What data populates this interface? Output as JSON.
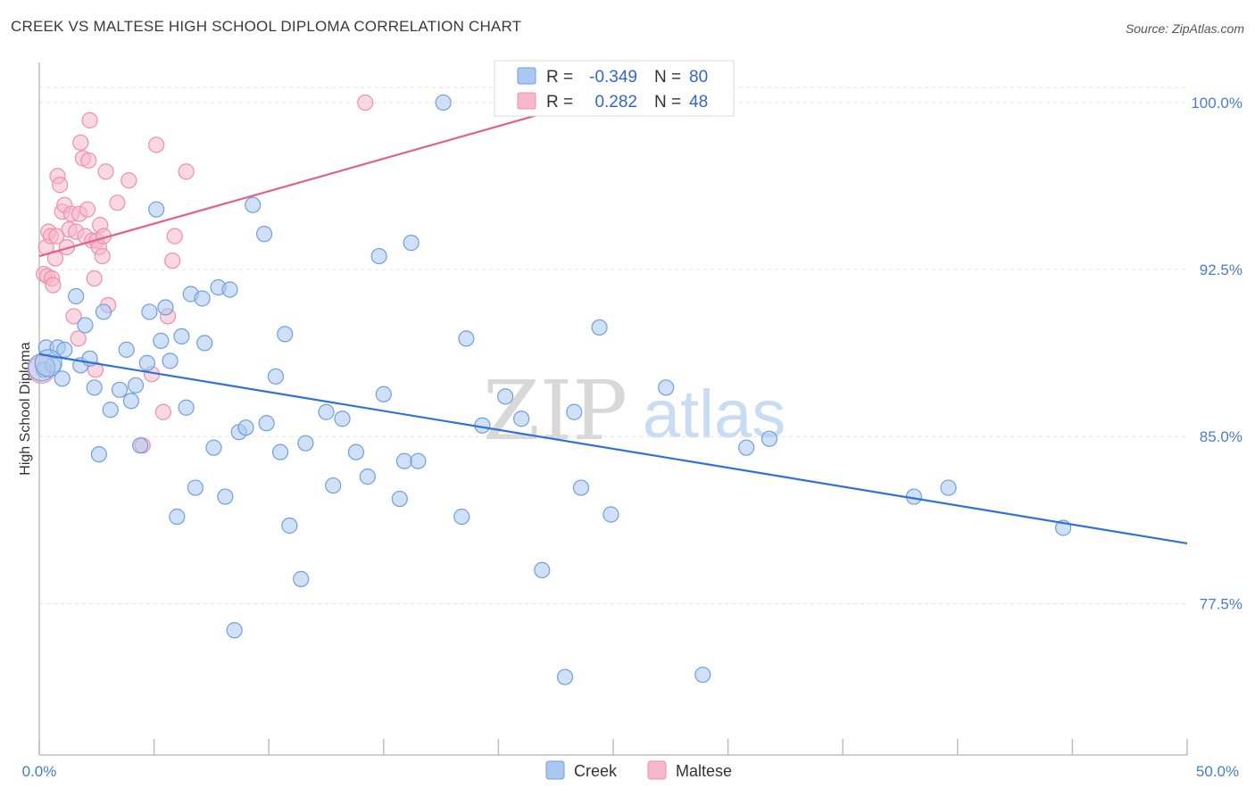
{
  "title": "CREEK VS MALTESE HIGH SCHOOL DIPLOMA CORRELATION CHART",
  "source": "Source: ZipAtlas.com",
  "watermark": {
    "zip": "ZIP",
    "atlas": "atlas"
  },
  "colors": {
    "creek_fill": "#aac8f0",
    "creek_stroke": "#6f9fdf",
    "creek_line": "#2f72d6",
    "maltese_fill": "#f6b8cb",
    "maltese_stroke": "#ee8fae",
    "maltese_line": "#e4608a",
    "tick_text": "#4a7cc9",
    "grid": "#e3e3e3"
  },
  "legend": {
    "rows": [
      {
        "r_label": "R =",
        "r_value": "-0.349",
        "n_label": "N =",
        "n_value": "80"
      },
      {
        "r_label": "R =",
        "r_value": "0.282",
        "n_label": "N =",
        "n_value": "48"
      }
    ]
  },
  "chart_data": {
    "type": "scatter",
    "title": "CREEK VS MALTESE HIGH SCHOOL DIPLOMA CORRELATION CHART",
    "xlabel": "",
    "ylabel": "High School Diploma",
    "xlim": [
      0,
      50
    ],
    "ylim": [
      70.7,
      101.8
    ],
    "x_tick_labels": [
      "0.0%",
      "50.0%"
    ],
    "y_ticks": [
      77.5,
      85.0,
      92.5,
      100.0
    ],
    "y_tick_labels": [
      "77.5%",
      "85.0%",
      "92.5%",
      "100.0%"
    ],
    "grid": true,
    "series": [
      {
        "name": "Creek",
        "r": -0.349,
        "n": 80,
        "trend": {
          "x": [
            0,
            50
          ],
          "y": [
            88.7,
            80.2
          ]
        },
        "points": [
          [
            0.2,
            88.0
          ],
          [
            0.3,
            89.0
          ],
          [
            0.6,
            88.2
          ],
          [
            0.8,
            89.0
          ],
          [
            1.0,
            87.6
          ],
          [
            1.1,
            88.9
          ],
          [
            1.6,
            91.3
          ],
          [
            1.8,
            88.2
          ],
          [
            2.0,
            90.0
          ],
          [
            2.2,
            88.5
          ],
          [
            2.4,
            87.2
          ],
          [
            2.6,
            84.2
          ],
          [
            2.8,
            90.6
          ],
          [
            3.1,
            86.2
          ],
          [
            3.5,
            87.1
          ],
          [
            3.8,
            88.9
          ],
          [
            4.0,
            86.6
          ],
          [
            4.2,
            87.3
          ],
          [
            4.4,
            84.6
          ],
          [
            4.7,
            88.3
          ],
          [
            4.8,
            90.6
          ],
          [
            5.1,
            95.2
          ],
          [
            5.3,
            89.3
          ],
          [
            5.5,
            90.8
          ],
          [
            5.7,
            88.4
          ],
          [
            6.0,
            81.4
          ],
          [
            6.2,
            89.5
          ],
          [
            6.4,
            86.3
          ],
          [
            6.6,
            91.4
          ],
          [
            6.8,
            82.7
          ],
          [
            7.1,
            91.2
          ],
          [
            7.2,
            89.2
          ],
          [
            7.6,
            84.5
          ],
          [
            7.8,
            91.7
          ],
          [
            8.1,
            82.3
          ],
          [
            8.3,
            91.6
          ],
          [
            8.5,
            76.3
          ],
          [
            8.7,
            85.2
          ],
          [
            9.0,
            85.4
          ],
          [
            9.3,
            95.4
          ],
          [
            9.8,
            94.1
          ],
          [
            9.9,
            85.6
          ],
          [
            10.3,
            87.7
          ],
          [
            10.5,
            84.3
          ],
          [
            10.7,
            89.6
          ],
          [
            10.9,
            81.0
          ],
          [
            11.4,
            78.6
          ],
          [
            11.6,
            84.7
          ],
          [
            12.5,
            86.1
          ],
          [
            12.8,
            82.8
          ],
          [
            13.2,
            85.8
          ],
          [
            13.8,
            84.3
          ],
          [
            14.3,
            83.2
          ],
          [
            14.8,
            93.1
          ],
          [
            15.0,
            86.9
          ],
          [
            15.7,
            82.2
          ],
          [
            15.9,
            83.9
          ],
          [
            16.2,
            93.7
          ],
          [
            16.5,
            83.9
          ],
          [
            17.6,
            100.0
          ],
          [
            18.4,
            81.4
          ],
          [
            18.6,
            89.4
          ],
          [
            19.3,
            85.5
          ],
          [
            20.3,
            86.8
          ],
          [
            21.0,
            85.8
          ],
          [
            21.9,
            79.0
          ],
          [
            22.9,
            74.2
          ],
          [
            23.3,
            86.1
          ],
          [
            23.6,
            82.7
          ],
          [
            24.4,
            89.9
          ],
          [
            24.9,
            81.5
          ],
          [
            27.3,
            87.2
          ],
          [
            28.9,
            74.3
          ],
          [
            30.8,
            84.5
          ],
          [
            31.8,
            84.9
          ],
          [
            38.1,
            82.3
          ],
          [
            39.6,
            82.7
          ],
          [
            44.6,
            80.9
          ],
          [
            0.1,
            88.1
          ],
          [
            0.4,
            88.3
          ]
        ]
      },
      {
        "name": "Maltese",
        "r": 0.282,
        "n": 48,
        "trend": {
          "x": [
            0,
            25
          ],
          "y": [
            93.1,
            100.4
          ]
        },
        "points": [
          [
            0.2,
            92.3
          ],
          [
            0.3,
            93.5
          ],
          [
            0.35,
            92.2
          ],
          [
            0.4,
            94.2
          ],
          [
            0.5,
            94.0
          ],
          [
            0.55,
            92.1
          ],
          [
            0.6,
            91.8
          ],
          [
            0.7,
            93.0
          ],
          [
            0.75,
            94.0
          ],
          [
            0.8,
            96.7
          ],
          [
            0.9,
            96.3
          ],
          [
            1.0,
            95.1
          ],
          [
            1.1,
            95.4
          ],
          [
            1.2,
            93.5
          ],
          [
            1.3,
            94.3
          ],
          [
            1.4,
            95.0
          ],
          [
            1.5,
            90.4
          ],
          [
            1.6,
            94.2
          ],
          [
            1.7,
            89.4
          ],
          [
            1.75,
            95.0
          ],
          [
            1.8,
            98.2
          ],
          [
            1.9,
            97.5
          ],
          [
            2.0,
            94.0
          ],
          [
            2.1,
            95.2
          ],
          [
            2.15,
            97.4
          ],
          [
            2.2,
            99.2
          ],
          [
            2.3,
            93.8
          ],
          [
            2.4,
            92.1
          ],
          [
            2.45,
            88.0
          ],
          [
            2.5,
            93.8
          ],
          [
            2.6,
            93.5
          ],
          [
            2.65,
            94.5
          ],
          [
            2.75,
            93.1
          ],
          [
            2.8,
            94.0
          ],
          [
            2.9,
            96.9
          ],
          [
            3.0,
            90.9
          ],
          [
            3.4,
            95.5
          ],
          [
            3.9,
            96.5
          ],
          [
            4.5,
            84.6
          ],
          [
            4.9,
            87.8
          ],
          [
            5.1,
            98.1
          ],
          [
            5.4,
            86.1
          ],
          [
            5.6,
            90.4
          ],
          [
            5.8,
            92.9
          ],
          [
            5.9,
            94.0
          ],
          [
            6.4,
            96.9
          ],
          [
            14.2,
            100.0
          ],
          [
            0.1,
            88.0
          ]
        ]
      }
    ]
  }
}
